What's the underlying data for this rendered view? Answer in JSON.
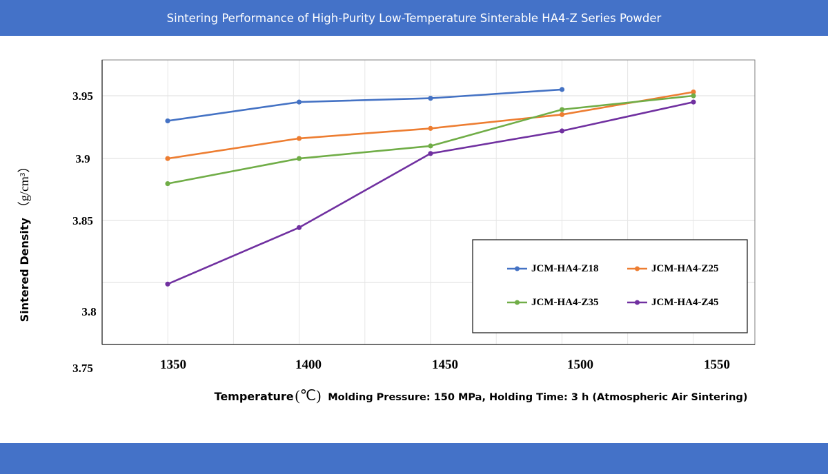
{
  "header": {
    "title": "Sintering Performance of High-Purity Low-Temperature Sinterable HA4-Z Series Powder"
  },
  "chart_data": {
    "type": "line",
    "x": [
      1350,
      1400,
      1450,
      1500,
      1550
    ],
    "xticks": [
      "1350",
      "1400",
      "1450",
      "1500",
      "1550"
    ],
    "yticks": [
      "3.95",
      "3.9",
      "3.85",
      "3.8",
      "3.75"
    ],
    "xlabel_main": "Temperature",
    "xlabel_unit": "(℃)",
    "xlabel_note": "Molding Pressure: 150 MPa, Holding Time: 3 h (Atmospheric Air Sintering)",
    "ylabel_main": "Sintered Density",
    "ylabel_unit": "（g/cm³）",
    "legend_position": "bottom-right",
    "grid": true,
    "series": [
      {
        "name": "JCM-HA4-Z18",
        "color": "#4472c4",
        "x": [
          1350,
          1400,
          1450,
          1500
        ],
        "values": [
          3.93,
          3.945,
          3.948,
          3.955
        ]
      },
      {
        "name": "JCM-HA4-Z25",
        "color": "#ed7d31",
        "x": [
          1350,
          1400,
          1450,
          1500,
          1550
        ],
        "values": [
          3.9,
          3.916,
          3.924,
          3.935,
          3.953
        ]
      },
      {
        "name": "JCM-HA4-Z35",
        "color": "#70ad47",
        "x": [
          1350,
          1400,
          1450,
          1500,
          1550
        ],
        "values": [
          3.88,
          3.9,
          3.91,
          3.939,
          3.95
        ]
      },
      {
        "name": "JCM-HA4-Z45",
        "color": "#7030a0",
        "x": [
          1350,
          1400,
          1450,
          1500,
          1550
        ],
        "values": [
          3.8,
          3.845,
          3.904,
          3.922,
          3.945
        ]
      }
    ]
  }
}
